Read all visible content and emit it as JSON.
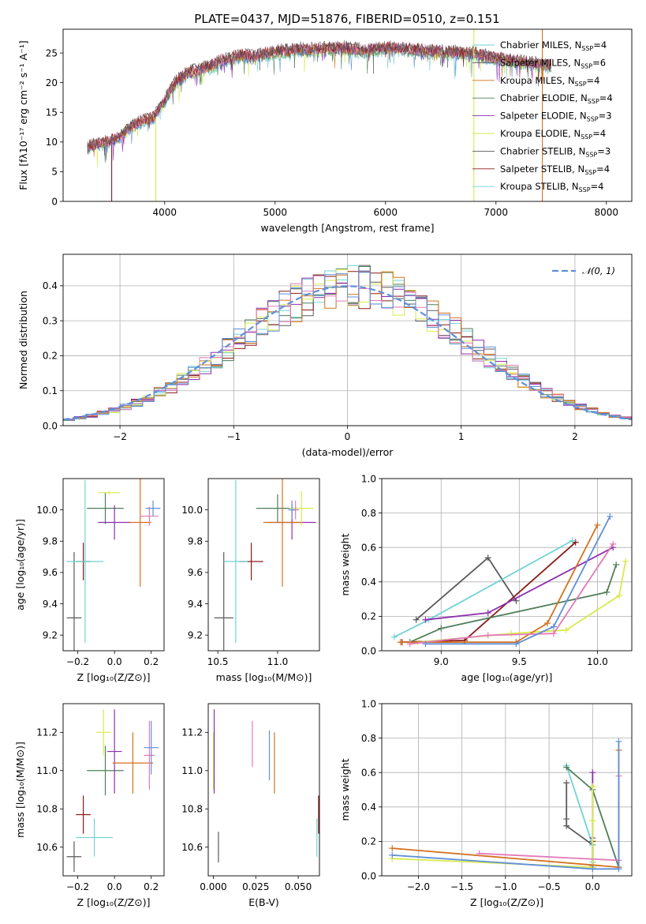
{
  "title": "PLATE=0437, MJD=51876, FIBERID=0510, z=0.151",
  "colors": [
    "#5a5a5a",
    "#8a1a1a",
    "#6fd3d3",
    "#4f7f5a",
    "#8d2fb0",
    "#d8ea4c",
    "#d2711f",
    "#e27ab9",
    "#5f8fd8"
  ],
  "chart_data": [
    {
      "name": "spectrum",
      "type": "line",
      "xlabel": "wavelength [Angstrom, rest frame]",
      "ylabel": "Flux [fλ10⁻¹⁷ erg cm⁻² s⁻¹ A⁻¹]",
      "xlim": [
        3080,
        8230
      ],
      "ylim": [
        0,
        29
      ],
      "xticks": [
        "4000",
        "5000",
        "6000",
        "7000",
        "8000"
      ],
      "xtick_values": [
        4000,
        5000,
        6000,
        7000,
        8000
      ],
      "yticks": [
        "0",
        "5",
        "10",
        "15",
        "20",
        "25"
      ],
      "ytick_values": [
        0,
        5,
        10,
        15,
        20,
        25
      ],
      "legend_position": "right",
      "legend": [
        {
          "label": "Chabrier MILES, N",
          "sub": "SSP",
          "tail": "=4"
        },
        {
          "label": "Salpeter MILES, N",
          "sub": "SSP",
          "tail": "=6"
        },
        {
          "label": "Kroupa MILES, N",
          "sub": "SSP",
          "tail": "=4"
        },
        {
          "label": "Chabrier ELODIE, N",
          "sub": "SSP",
          "tail": "=4"
        },
        {
          "label": "Salpeter ELODIE, N",
          "sub": "SSP",
          "tail": "=3"
        },
        {
          "label": "Kroupa ELODIE, N",
          "sub": "SSP",
          "tail": "=4"
        },
        {
          "label": "Chabrier STELIB, N",
          "sub": "SSP",
          "tail": "=3"
        },
        {
          "label": "Salpeter STELIB, N",
          "sub": "SSP",
          "tail": "=4"
        },
        {
          "label": "Kroupa STELIB, N",
          "sub": "SSP",
          "tail": "=4"
        }
      ],
      "legend_colors": [
        "#6fd3d3",
        "#5a5a5a",
        "#d2711f",
        "#4f7f5a",
        "#8d2fb0",
        "#d8ea4c",
        "#5a5a5a",
        "#8a1a1a",
        "#6fd3d3"
      ],
      "continuum_x": [
        3300,
        3400,
        3500,
        3600,
        3700,
        3800,
        3900,
        4000,
        4100,
        4200,
        4300,
        4400,
        4500,
        4600,
        4700,
        4800,
        4900,
        5000,
        5200,
        5400,
        5600,
        5800,
        6000,
        6200,
        6400,
        6600,
        6800,
        7000,
        7200,
        7400,
        7500
      ],
      "continuum_y": [
        9.2,
        9.6,
        10.0,
        11.0,
        12.5,
        13.5,
        14.0,
        17.0,
        20.0,
        21.5,
        22.0,
        22.5,
        23.5,
        24.0,
        24.5,
        24.3,
        24.8,
        25.0,
        25.5,
        25.5,
        25.8,
        25.3,
        25.8,
        25.6,
        25.2,
        25.0,
        24.8,
        24.0,
        23.5,
        23.0,
        22.8
      ],
      "drop_lines": [
        {
          "x": 3520,
          "color": "#8a1a1a",
          "from": 9.5
        },
        {
          "x": 3920,
          "color": "#d8ea4c",
          "from": 14.0
        },
        {
          "x": 6800,
          "color": "#d8ea4c",
          "from": 24.0
        },
        {
          "x": 7420,
          "color": "#d2711f",
          "from": 23.0
        }
      ]
    },
    {
      "name": "residual-histogram",
      "type": "histogram",
      "xlabel": "(data-model)/error",
      "ylabel": "Normed distribution",
      "xlim": [
        -2.5,
        2.5
      ],
      "ylim": [
        0,
        0.49
      ],
      "xticks": [
        "−2",
        "−1",
        "0",
        "1",
        "2"
      ],
      "xtick_values": [
        -2,
        -1,
        0,
        1,
        2
      ],
      "yticks": [
        "0.0",
        "0.1",
        "0.2",
        "0.3",
        "0.4"
      ],
      "ytick_values": [
        0,
        0.1,
        0.2,
        0.3,
        0.4
      ],
      "bin_start": -2.5,
      "bin_width": 0.1,
      "nbins": 50,
      "reference_curve": {
        "label": "𝒩(0, 1)",
        "mean": 0,
        "sigma": 1,
        "color": "#5f8fd8"
      },
      "grid": true
    },
    {
      "name": "age-vs-metallicity",
      "type": "errorbar",
      "xlabel": "Z [log₁₀(Z/Z⊙)]",
      "ylabel": "age  [log₁₀(age/yr)]",
      "xlim": [
        -0.28,
        0.27
      ],
      "ylim": [
        9.1,
        10.2
      ],
      "xticks": [
        "−0.2",
        "0.0",
        "0.2"
      ],
      "xtick_values": [
        -0.2,
        0,
        0.2
      ],
      "yticks": [
        "9.2",
        "9.4",
        "9.6",
        "9.8",
        "10.0"
      ],
      "ytick_values": [
        9.2,
        9.4,
        9.6,
        9.8,
        10.0
      ],
      "points": [
        {
          "x": -0.22,
          "xerr": 0.04,
          "y": 9.31,
          "yerr": 0.42,
          "c": 0
        },
        {
          "x": -0.17,
          "xerr": 0.04,
          "y": 9.67,
          "yerr": 0.12,
          "c": 1
        },
        {
          "x": -0.16,
          "xerr": 0.1,
          "y": 9.67,
          "yerr": 0.52,
          "c": 2
        },
        {
          "x": -0.05,
          "xerr": 0.1,
          "y": 10.01,
          "yerr": 0.1,
          "c": 3
        },
        {
          "x": 0.0,
          "xerr": 0.09,
          "y": 9.92,
          "yerr": 0.11,
          "c": 4
        },
        {
          "x": -0.03,
          "xerr": 0.06,
          "y": 10.11,
          "yerr": 0.01,
          "c": 5
        },
        {
          "x": 0.14,
          "xerr": 0.06,
          "y": 9.92,
          "yerr": 0.41,
          "c": 6
        },
        {
          "x": 0.19,
          "xerr": 0.05,
          "y": 9.96,
          "yerr": 0.06,
          "c": 7
        },
        {
          "x": 0.21,
          "xerr": 0.04,
          "y": 10.01,
          "yerr": 0.05,
          "c": 8
        }
      ]
    },
    {
      "name": "age-vs-mass",
      "type": "errorbar",
      "xlabel": "mass [log₁₀(M/M⊙)]",
      "ylabel": "",
      "xlim": [
        10.42,
        11.35
      ],
      "ylim": [
        9.1,
        10.2
      ],
      "xticks": [
        "10.5",
        "11.0"
      ],
      "xtick_values": [
        10.5,
        11.0
      ],
      "yticks": [
        "9.2",
        "9.4",
        "9.6",
        "9.8",
        "10.0"
      ],
      "ytick_values": [
        9.2,
        9.4,
        9.6,
        9.8,
        10.0
      ],
      "points": [
        {
          "x": 10.55,
          "xerr": 0.08,
          "y": 9.31,
          "yerr": 0.42,
          "c": 0
        },
        {
          "x": 10.78,
          "xerr": 0.1,
          "y": 9.67,
          "yerr": 0.12,
          "c": 1
        },
        {
          "x": 10.65,
          "xerr": 0.1,
          "y": 9.67,
          "yerr": 0.52,
          "c": 2
        },
        {
          "x": 11.0,
          "xerr": 0.18,
          "y": 10.01,
          "yerr": 0.09,
          "c": 3
        },
        {
          "x": 11.12,
          "xerr": 0.2,
          "y": 9.92,
          "yerr": 0.11,
          "c": 4
        },
        {
          "x": 11.2,
          "xerr": 0.1,
          "y": 10.01,
          "yerr": 0.11,
          "c": 5
        },
        {
          "x": 11.04,
          "xerr": 0.16,
          "y": 9.92,
          "yerr": 0.41,
          "c": 6
        },
        {
          "x": 11.15,
          "xerr": 0.03,
          "y": 10.0,
          "yerr": 0.06,
          "c": 7
        },
        {
          "x": 11.12,
          "xerr": 0.03,
          "y": 10.0,
          "yerr": 0.06,
          "c": 8
        }
      ]
    },
    {
      "name": "mass-weight-vs-age",
      "type": "line",
      "xlabel": "age  [log₁₀(age/yr)]",
      "ylabel": "mass weight",
      "xlim": [
        8.62,
        10.22
      ],
      "ylim": [
        0,
        1
      ],
      "xticks": [
        "9.0",
        "9.5",
        "10.0"
      ],
      "xtick_values": [
        9.0,
        9.5,
        10.0
      ],
      "yticks": [
        "0.0",
        "0.2",
        "0.4",
        "0.6",
        "0.8",
        "1.0"
      ],
      "ytick_values": [
        0,
        0.2,
        0.4,
        0.6,
        0.8,
        1.0
      ],
      "grid": true,
      "series": [
        {
          "c": 0,
          "x": [
            8.84,
            9.3,
            9.48
          ],
          "y": [
            0.18,
            0.54,
            0.29
          ]
        },
        {
          "c": 1,
          "x": [
            8.75,
            9.15,
            9.86
          ],
          "y": [
            0.05,
            0.06,
            0.63
          ]
        },
        {
          "c": 2,
          "x": [
            8.7,
            8.92,
            9.84
          ],
          "y": [
            0.08,
            0.18,
            0.64
          ]
        },
        {
          "c": 3,
          "x": [
            8.8,
            9.0,
            10.06,
            10.12
          ],
          "y": [
            0.05,
            0.13,
            0.34,
            0.5
          ]
        },
        {
          "c": 4,
          "x": [
            8.9,
            9.3,
            10.1
          ],
          "y": [
            0.18,
            0.22,
            0.6
          ]
        },
        {
          "c": 5,
          "x": [
            8.85,
            9.45,
            9.8,
            10.14,
            10.18
          ],
          "y": [
            0.05,
            0.1,
            0.12,
            0.32,
            0.52
          ]
        },
        {
          "c": 6,
          "x": [
            8.74,
            9.48,
            9.68,
            10.0
          ],
          "y": [
            0.05,
            0.05,
            0.16,
            0.73
          ]
        },
        {
          "c": 7,
          "x": [
            8.8,
            9.3,
            9.72,
            10.1
          ],
          "y": [
            0.04,
            0.09,
            0.1,
            0.62
          ]
        },
        {
          "c": 8,
          "x": [
            8.9,
            9.48,
            9.72,
            10.08
          ],
          "y": [
            0.04,
            0.04,
            0.14,
            0.78
          ]
        }
      ]
    },
    {
      "name": "mass-vs-metallicity",
      "type": "errorbar",
      "xlabel": "Z [log₁₀(Z/Z⊙)]",
      "ylabel": "mass [log₁₀(M/M⊙)]",
      "xlim": [
        -0.28,
        0.27
      ],
      "ylim": [
        10.45,
        11.35
      ],
      "xticks": [
        "−0.2",
        "0.0",
        "0.2"
      ],
      "xtick_values": [
        -0.2,
        0,
        0.2
      ],
      "yticks": [
        "10.6",
        "10.8",
        "11.0",
        "11.2"
      ],
      "ytick_values": [
        10.6,
        10.8,
        11.0,
        11.2
      ],
      "points": [
        {
          "x": -0.22,
          "xerr": 0.04,
          "y": 10.55,
          "yerr": 0.08,
          "c": 0
        },
        {
          "x": -0.17,
          "xerr": 0.04,
          "y": 10.77,
          "yerr": 0.1,
          "c": 1
        },
        {
          "x": -0.11,
          "xerr": 0.1,
          "y": 10.65,
          "yerr": 0.1,
          "c": 2
        },
        {
          "x": -0.05,
          "xerr": 0.1,
          "y": 11.0,
          "yerr": 0.13,
          "c": 3
        },
        {
          "x": 0.0,
          "xerr": 0.04,
          "y": 11.1,
          "yerr": 0.22,
          "c": 4
        },
        {
          "x": -0.06,
          "xerr": 0.04,
          "y": 11.2,
          "yerr": 0.12,
          "c": 5
        },
        {
          "x": 0.1,
          "xerr": 0.11,
          "y": 11.04,
          "yerr": 0.16,
          "c": 6
        },
        {
          "x": 0.19,
          "xerr": 0.03,
          "y": 11.08,
          "yerr": 0.18,
          "c": 7
        },
        {
          "x": 0.2,
          "xerr": 0.04,
          "y": 11.12,
          "yerr": 0.14,
          "c": 8
        }
      ]
    },
    {
      "name": "mass-vs-ebv",
      "type": "errorbar",
      "xlabel": "E(B-V)",
      "ylabel": "",
      "xlim": [
        -0.003,
        0.0625
      ],
      "ylim": [
        10.45,
        11.35
      ],
      "xticks": [
        "0.000",
        "0.025",
        "0.050"
      ],
      "xtick_values": [
        0,
        0.025,
        0.05
      ],
      "yticks": [
        "10.6",
        "10.8",
        "11.0",
        "11.2"
      ],
      "ytick_values": [
        10.6,
        10.8,
        11.0,
        11.2
      ],
      "points": [
        {
          "x": 0.003,
          "y": 10.6,
          "yerr": 0.08,
          "c": 0
        },
        {
          "x": 0.062,
          "y": 10.77,
          "yerr": 0.1,
          "c": 1
        },
        {
          "x": 0.061,
          "y": 10.65,
          "yerr": 0.1,
          "c": 2
        },
        {
          "x": 0.0,
          "y": 11.05,
          "yerr": 0.15,
          "c": 5
        },
        {
          "x": 0.0005,
          "y": 11.1,
          "yerr": 0.22,
          "c": 4
        },
        {
          "x": 0.036,
          "y": 11.04,
          "yerr": 0.16,
          "c": 6
        },
        {
          "x": 0.023,
          "y": 11.14,
          "yerr": 0.12,
          "c": 7
        },
        {
          "x": 0.033,
          "y": 11.08,
          "yerr": 0.13,
          "c": 8
        }
      ]
    },
    {
      "name": "mass-weight-vs-metallicity",
      "type": "line",
      "xlabel": "Z [log₁₀(Z/Z⊙)]",
      "ylabel": "mass weight",
      "xlim": [
        -2.42,
        0.45
      ],
      "ylim": [
        0,
        1
      ],
      "xticks": [
        "−2.0",
        "−1.5",
        "−1.0",
        "−0.5",
        "0.0"
      ],
      "xtick_values": [
        -2,
        -1.5,
        -1,
        -0.5,
        0
      ],
      "yticks": [
        "0.0",
        "0.2",
        "0.4",
        "0.6",
        "0.8",
        "1.0"
      ],
      "ytick_values": [
        0,
        0.2,
        0.4,
        0.6,
        0.8,
        1.0
      ],
      "grid": true,
      "series": [
        {
          "c": 0,
          "x": [
            -0.3,
            -0.3,
            -0.3,
            0.0,
            0.0
          ],
          "y": [
            0.54,
            0.33,
            0.29,
            0.18,
            0.05
          ]
        },
        {
          "c": 1,
          "x": [
            0.0,
            0.0,
            0.0
          ],
          "y": [
            0.2,
            0.06,
            0.05
          ]
        },
        {
          "c": 2,
          "x": [
            -0.3,
            0.0,
            0.0
          ],
          "y": [
            0.64,
            0.18,
            0.08
          ]
        },
        {
          "c": 3,
          "x": [
            -0.3,
            0.0,
            0.3
          ],
          "y": [
            0.63,
            0.5,
            0.05
          ]
        },
        {
          "c": 4,
          "x": [
            0.0,
            0.0
          ],
          "y": [
            0.6,
            0.22
          ]
        },
        {
          "c": 5,
          "x": [
            -2.3,
            0.0,
            0.0,
            0.0
          ],
          "y": [
            0.1,
            0.05,
            0.32,
            0.52
          ]
        },
        {
          "c": 6,
          "x": [
            -2.3,
            0.3,
            0.3
          ],
          "y": [
            0.16,
            0.05,
            0.73
          ]
        },
        {
          "c": 7,
          "x": [
            -1.3,
            0.3,
            0.3
          ],
          "y": [
            0.13,
            0.09,
            0.58
          ]
        },
        {
          "c": 8,
          "x": [
            -2.3,
            0.0,
            0.3,
            0.3
          ],
          "y": [
            0.12,
            0.04,
            0.04,
            0.78
          ]
        }
      ]
    }
  ]
}
